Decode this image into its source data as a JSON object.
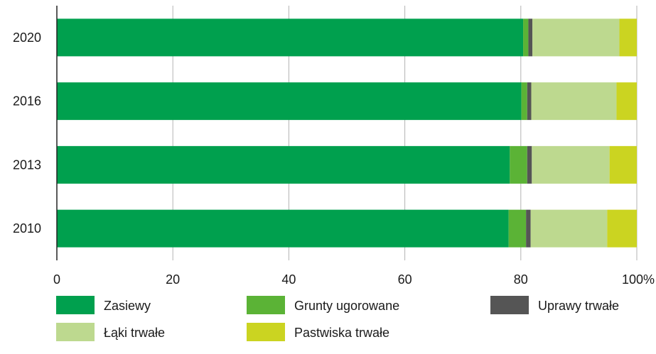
{
  "chart_data": {
    "type": "bar",
    "orientation": "horizontal",
    "stacked": true,
    "categories": [
      "2020",
      "2016",
      "2013",
      "2010"
    ],
    "series": [
      {
        "name": "Zasiewy",
        "color": "#00a04e",
        "values": [
          80.4,
          80.1,
          78.1,
          77.9
        ]
      },
      {
        "name": "Grunty ugorowane",
        "color": "#5bb336",
        "values": [
          0.9,
          1.0,
          3.0,
          3.0
        ]
      },
      {
        "name": "Uprawy trwałe",
        "color": "#555555",
        "values": [
          0.7,
          0.7,
          0.8,
          0.8
        ]
      },
      {
        "name": "Łąki trwałe",
        "color": "#bdd98f",
        "values": [
          15.0,
          14.7,
          13.4,
          13.2
        ]
      },
      {
        "name": "Pastwiska trwałe",
        "color": "#cbd421",
        "values": [
          3.0,
          3.5,
          4.7,
          5.1
        ]
      }
    ],
    "xlim": [
      0,
      100
    ],
    "xticks": [
      "0",
      "20",
      "40",
      "60",
      "80",
      "100%"
    ],
    "grid": true,
    "legend_position": "bottom"
  }
}
